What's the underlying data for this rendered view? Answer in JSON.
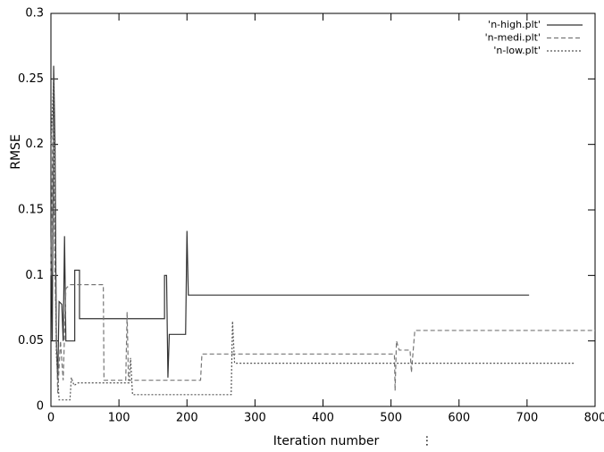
{
  "chart_data": {
    "type": "line",
    "xlabel": "Iteration number",
    "ylabel": "RMSE",
    "annotation": "⋮",
    "xlim": [
      0,
      800
    ],
    "xticks": [
      0,
      100,
      200,
      300,
      400,
      500,
      600,
      700,
      800
    ],
    "ylim": [
      0,
      0.3
    ],
    "yticks": [
      0,
      0.05,
      0.1,
      0.15,
      0.2,
      0.25,
      0.3
    ],
    "legend": "top-right",
    "series": [
      {
        "name": "'n-high.plt'",
        "color": "#333333",
        "line_style": "solid",
        "x": [
          0,
          2,
          4,
          6,
          8,
          10,
          12,
          16,
          18,
          20,
          22,
          35,
          35,
          42,
          42,
          167,
          167,
          170,
          172,
          174,
          198,
          200,
          202,
          703
        ],
        "values": [
          0.13,
          0.05,
          0.26,
          0.2,
          0.05,
          0.02,
          0.08,
          0.078,
          0.05,
          0.13,
          0.05,
          0.05,
          0.104,
          0.104,
          0.067,
          0.067,
          0.1,
          0.1,
          0.022,
          0.055,
          0.055,
          0.134,
          0.085,
          0.085
        ]
      },
      {
        "name": "'n-medi.plt'",
        "color": "#777777",
        "line_style": "dashed",
        "x": [
          0,
          3,
          6,
          10,
          14,
          18,
          22,
          28,
          77,
          78,
          110,
          112,
          114,
          220,
          222,
          505,
          506,
          508,
          512,
          528,
          530,
          535,
          800
        ],
        "values": [
          0.1,
          0.22,
          0.1,
          0.01,
          0.05,
          0.02,
          0.09,
          0.093,
          0.093,
          0.02,
          0.02,
          0.072,
          0.02,
          0.02,
          0.04,
          0.04,
          0.012,
          0.05,
          0.043,
          0.043,
          0.026,
          0.058,
          0.058
        ]
      },
      {
        "name": "'n-low.plt'",
        "color": "#555555",
        "line_style": "dotted",
        "x": [
          0,
          4,
          8,
          12,
          28,
          30,
          34,
          40,
          115,
          117,
          120,
          265,
          267,
          270,
          770
        ],
        "values": [
          0.2,
          0.25,
          0.04,
          0.005,
          0.005,
          0.022,
          0.016,
          0.018,
          0.018,
          0.037,
          0.009,
          0.009,
          0.065,
          0.033,
          0.033
        ]
      }
    ]
  }
}
